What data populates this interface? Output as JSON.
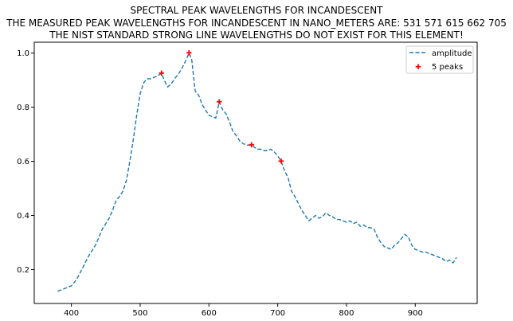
{
  "chart_data": {
    "type": "line",
    "title_lines": [
      "SPECTRAL PEAK WAVELENGTHS FOR INCANDESCENT",
      "THE MEASURED PEAK WAVELENGTHS FOR INCANDESCENT IN NANO_METERS ARE: 531 571 615 662 705",
      "THE NIST STANDARD STRONG LINE WAVELENGTHS DO NOT EXIST FOR THIS ELEMENT!"
    ],
    "xlabel": "",
    "ylabel": "",
    "xlim": [
      346,
      990
    ],
    "ylim": [
      0.075,
      1.04
    ],
    "xticks": [
      400,
      500,
      600,
      700,
      800,
      900
    ],
    "yticks": [
      0.2,
      0.4,
      0.6,
      0.8,
      1.0
    ],
    "ytick_labels": [
      "0.2",
      "0.4",
      "0.6",
      "0.8",
      "1.0"
    ],
    "grid": false,
    "legend_position": "top-right",
    "colors": {
      "line": "#1f77b4",
      "peaks": "#ff0000"
    },
    "series": [
      {
        "name": "amplitude",
        "style": "dashed",
        "x": [
          380,
          385,
          390,
          395,
          400,
          405,
          410,
          415,
          420,
          425,
          430,
          435,
          440,
          445,
          450,
          455,
          460,
          465,
          470,
          475,
          480,
          485,
          490,
          495,
          500,
          505,
          510,
          515,
          520,
          525,
          531,
          535,
          540,
          545,
          550,
          555,
          560,
          565,
          571,
          575,
          580,
          585,
          590,
          595,
          600,
          605,
          610,
          615,
          620,
          625,
          630,
          635,
          640,
          645,
          650,
          655,
          662,
          665,
          670,
          675,
          680,
          685,
          690,
          695,
          700,
          705,
          710,
          715,
          720,
          725,
          730,
          735,
          740,
          745,
          750,
          755,
          760,
          765,
          770,
          775,
          780,
          785,
          790,
          795,
          800,
          805,
          810,
          815,
          820,
          825,
          830,
          835,
          840,
          845,
          850,
          855,
          860,
          865,
          870,
          875,
          880,
          885,
          890,
          895,
          900,
          905,
          910,
          915,
          920,
          925,
          930,
          935,
          940,
          945,
          950,
          955,
          960
        ],
        "y": [
          0.12,
          0.125,
          0.13,
          0.135,
          0.14,
          0.155,
          0.175,
          0.2,
          0.225,
          0.25,
          0.27,
          0.29,
          0.32,
          0.35,
          0.37,
          0.39,
          0.42,
          0.455,
          0.47,
          0.49,
          0.53,
          0.6,
          0.68,
          0.77,
          0.85,
          0.89,
          0.905,
          0.905,
          0.91,
          0.915,
          0.925,
          0.9,
          0.875,
          0.885,
          0.905,
          0.92,
          0.94,
          0.965,
          1.0,
          0.975,
          0.86,
          0.845,
          0.81,
          0.79,
          0.77,
          0.765,
          0.76,
          0.82,
          0.79,
          0.775,
          0.745,
          0.71,
          0.695,
          0.675,
          0.665,
          0.66,
          0.66,
          0.655,
          0.645,
          0.645,
          0.64,
          0.64,
          0.645,
          0.635,
          0.62,
          0.6,
          0.565,
          0.54,
          0.49,
          0.47,
          0.445,
          0.42,
          0.4,
          0.38,
          0.39,
          0.4,
          0.39,
          0.395,
          0.41,
          0.4,
          0.395,
          0.385,
          0.385,
          0.38,
          0.375,
          0.38,
          0.37,
          0.375,
          0.36,
          0.365,
          0.355,
          0.355,
          0.35,
          0.32,
          0.3,
          0.285,
          0.28,
          0.275,
          0.29,
          0.3,
          0.315,
          0.33,
          0.32,
          0.29,
          0.275,
          0.27,
          0.265,
          0.265,
          0.26,
          0.255,
          0.25,
          0.245,
          0.24,
          0.23,
          0.235,
          0.225,
          0.245
        ]
      },
      {
        "name": "5 peaks",
        "style": "markers",
        "x": [
          531,
          571,
          615,
          662,
          705
        ],
        "y": [
          0.925,
          1.0,
          0.82,
          0.66,
          0.6
        ]
      }
    ]
  }
}
